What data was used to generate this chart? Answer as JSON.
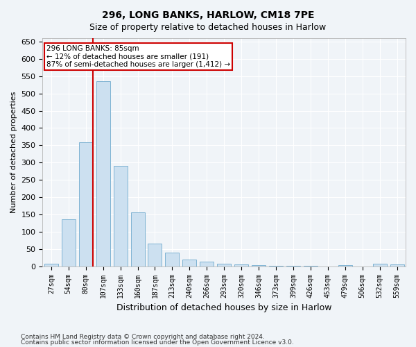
{
  "title1": "296, LONG BANKS, HARLOW, CM18 7PE",
  "title2": "Size of property relative to detached houses in Harlow",
  "xlabel": "Distribution of detached houses by size in Harlow",
  "ylabel": "Number of detached properties",
  "footer1": "Contains HM Land Registry data © Crown copyright and database right 2024.",
  "footer2": "Contains public sector information licensed under the Open Government Licence v3.0.",
  "annotation_title": "296 LONG BANKS: 85sqm",
  "annotation_line2": "← 12% of detached houses are smaller (191)",
  "annotation_line3": "87% of semi-detached houses are larger (1,412) →",
  "bar_color": "#cce0f0",
  "bar_edge_color": "#7fb3d3",
  "vline_color": "#cc0000",
  "vline_x": 2,
  "annotation_box_color": "#ffffff",
  "annotation_box_edge": "#cc0000",
  "categories": [
    "27sqm",
    "54sqm",
    "80sqm",
    "107sqm",
    "133sqm",
    "160sqm",
    "187sqm",
    "213sqm",
    "240sqm",
    "266sqm",
    "293sqm",
    "320sqm",
    "346sqm",
    "373sqm",
    "399sqm",
    "426sqm",
    "453sqm",
    "479sqm",
    "506sqm",
    "532sqm",
    "559sqm"
  ],
  "values": [
    8,
    135,
    358,
    535,
    290,
    157,
    65,
    40,
    20,
    13,
    8,
    5,
    3,
    2,
    1,
    1,
    0,
    4,
    0,
    8,
    5
  ],
  "ylim": [
    0,
    660
  ],
  "yticks": [
    0,
    50,
    100,
    150,
    200,
    250,
    300,
    350,
    400,
    450,
    500,
    550,
    600,
    650
  ],
  "background_color": "#f0f4f8",
  "grid_color": "#ffffff"
}
